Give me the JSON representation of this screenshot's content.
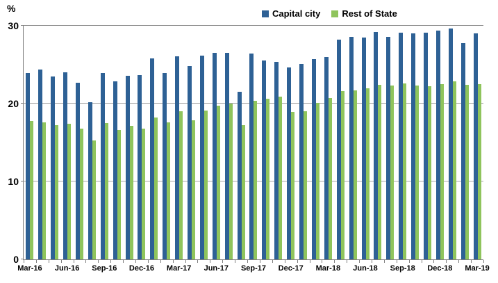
{
  "chart_data": {
    "type": "bar",
    "title": "",
    "unit_label": "%",
    "ylim": [
      0,
      30
    ],
    "yticks": [
      0,
      10,
      20,
      30
    ],
    "gridlines": [
      10,
      20
    ],
    "grid_on": true,
    "legend_position": "top",
    "axis_color": "#7F7F7F",
    "grid_color": "#A6A6A6",
    "categories": [
      "Mar-16",
      "Apr-16",
      "May-16",
      "Jun-16",
      "Jul-16",
      "Aug-16",
      "Sep-16",
      "Oct-16",
      "Nov-16",
      "Dec-16",
      "Jan-17",
      "Feb-17",
      "Mar-17",
      "Apr-17",
      "May-17",
      "Jun-17",
      "Jul-17",
      "Aug-17",
      "Sep-17",
      "Oct-17",
      "Nov-17",
      "Dec-17",
      "Jan-18",
      "Feb-18",
      "Mar-18",
      "Apr-18",
      "May-18",
      "Jun-18",
      "Jul-18",
      "Aug-18",
      "Sep-18",
      "Oct-18",
      "Nov-18",
      "Dec-18",
      "Jan-19",
      "Feb-19",
      "Mar-19"
    ],
    "x_tick_labels": [
      "Mar-16",
      "Jun-16",
      "Sep-16",
      "Dec-16",
      "Mar-17",
      "Jun-17",
      "Sep-17",
      "Dec-17",
      "Mar-18",
      "Jun-18",
      "Sep-18",
      "Dec-18",
      "Mar-19"
    ],
    "x_tick_label_step": 3,
    "series": [
      {
        "name": "Capital city",
        "color": "#2E6195",
        "values": [
          23.9,
          24.4,
          23.5,
          24.0,
          22.7,
          20.2,
          23.9,
          22.9,
          23.6,
          23.7,
          25.8,
          23.9,
          26.1,
          24.8,
          26.2,
          26.5,
          26.5,
          21.5,
          26.4,
          25.5,
          25.4,
          24.6,
          25.1,
          25.7,
          26.0,
          28.2,
          28.6,
          28.5,
          29.2,
          28.6,
          29.1,
          29.0,
          29.1,
          29.4,
          29.6,
          27.8,
          29.0
        ]
      },
      {
        "name": "Rest of State",
        "color": "#8FC45C",
        "values": [
          17.8,
          17.6,
          17.2,
          17.4,
          16.8,
          15.3,
          17.5,
          16.6,
          17.1,
          16.8,
          18.2,
          17.6,
          19.0,
          17.9,
          19.1,
          19.7,
          20.0,
          17.2,
          20.4,
          20.6,
          20.9,
          18.9,
          19.0,
          20.1,
          20.7,
          21.6,
          21.7,
          22.0,
          22.4,
          22.3,
          22.6,
          22.3,
          22.2,
          22.5,
          22.9,
          22.4,
          22.5
        ]
      }
    ]
  }
}
